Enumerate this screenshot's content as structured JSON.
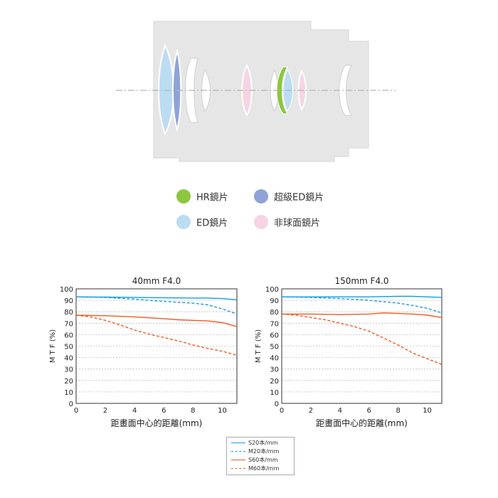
{
  "diagram": {
    "legend": [
      {
        "label": "HR鏡片",
        "color": "#8dc63f",
        "icon": "hr-lens-dot"
      },
      {
        "label": "超級ED鏡片",
        "color": "#8fa3d6",
        "icon": "super-ed-lens-dot"
      },
      {
        "label": "ED鏡片",
        "color": "#bcdcf2",
        "icon": "ed-lens-dot"
      },
      {
        "label": "非球面鏡片",
        "color": "#f6d4e3",
        "icon": "aspherical-lens-dot"
      }
    ]
  },
  "mtf_legend": [
    {
      "label": "S20本/mm",
      "color": "#1a9ae0",
      "style": "solid"
    },
    {
      "label": "M20本/mm",
      "color": "#1a9ae0",
      "style": "dashed"
    },
    {
      "label": "S60本/mm",
      "color": "#f05a24",
      "style": "solid"
    },
    {
      "label": "M60本/mm",
      "color": "#f05a24",
      "style": "dashed"
    }
  ],
  "chart_data": [
    {
      "type": "line",
      "title": "40mm F4.0",
      "xlabel": "距畫面中心的距離(mm)",
      "ylabel": "M T F (%)",
      "xlim": [
        0,
        11
      ],
      "ylim": [
        0,
        100
      ],
      "xticks": [
        0,
        2,
        4,
        6,
        8,
        10
      ],
      "yticks": [
        0,
        10,
        20,
        30,
        40,
        50,
        60,
        70,
        80,
        90,
        100
      ],
      "grid": true,
      "series": [
        {
          "name": "S20本/mm",
          "color": "#1a9ae0",
          "style": "solid",
          "x": [
            0,
            2,
            4,
            6,
            8,
            9,
            10,
            11
          ],
          "y": [
            93,
            92.8,
            92.5,
            92.2,
            92,
            92,
            91.5,
            90.5
          ]
        },
        {
          "name": "M20本/mm",
          "color": "#1a9ae0",
          "style": "dashed",
          "x": [
            0,
            2,
            4,
            6,
            8,
            9,
            10,
            11
          ],
          "y": [
            93,
            92.5,
            91,
            89,
            87.5,
            86,
            82.5,
            78
          ]
        },
        {
          "name": "S60本/mm",
          "color": "#f05a24",
          "style": "solid",
          "x": [
            0,
            2,
            4,
            6,
            7,
            8,
            9,
            10,
            11
          ],
          "y": [
            77,
            76.5,
            75.5,
            74,
            73,
            72.5,
            72,
            70.5,
            67
          ]
        },
        {
          "name": "M60本/mm",
          "color": "#f05a24",
          "style": "dashed",
          "x": [
            0,
            1,
            2,
            3,
            4,
            5,
            6,
            7,
            8,
            9,
            10,
            11
          ],
          "y": [
            77,
            75.5,
            72.5,
            68.5,
            64,
            60.5,
            57.5,
            54.5,
            51,
            48,
            45.5,
            42
          ]
        }
      ]
    },
    {
      "type": "line",
      "title": "150mm F4.0",
      "xlabel": "距畫面中心的距離(mm)",
      "ylabel": "M T F (%)",
      "xlim": [
        0,
        11
      ],
      "ylim": [
        0,
        100
      ],
      "xticks": [
        0,
        2,
        4,
        6,
        8,
        10
      ],
      "yticks": [
        0,
        10,
        20,
        30,
        40,
        50,
        60,
        70,
        80,
        90,
        100
      ],
      "grid": true,
      "series": [
        {
          "name": "S20本/mm",
          "color": "#1a9ae0",
          "style": "solid",
          "x": [
            0,
            2,
            4,
            6,
            8,
            9,
            10,
            11
          ],
          "y": [
            93,
            93,
            93,
            93,
            93.5,
            93.5,
            93,
            92.5
          ]
        },
        {
          "name": "M20本/mm",
          "color": "#1a9ae0",
          "style": "dashed",
          "x": [
            0,
            2,
            4,
            6,
            8,
            9,
            10,
            11
          ],
          "y": [
            93,
            92.5,
            91.5,
            90,
            87.5,
            85.5,
            83,
            79
          ]
        },
        {
          "name": "S60本/mm",
          "color": "#f05a24",
          "style": "solid",
          "x": [
            0,
            2,
            4,
            6,
            7,
            8,
            9,
            10,
            11
          ],
          "y": [
            78,
            78,
            77.5,
            78,
            79,
            78.5,
            78,
            77,
            75
          ]
        },
        {
          "name": "M60本/mm",
          "color": "#f05a24",
          "style": "dashed",
          "x": [
            0,
            1,
            2,
            3,
            4,
            5,
            6,
            7,
            8,
            9,
            10,
            11
          ],
          "y": [
            78,
            77,
            75,
            73,
            70,
            67,
            63,
            57,
            51,
            44,
            39,
            34
          ]
        }
      ]
    }
  ]
}
